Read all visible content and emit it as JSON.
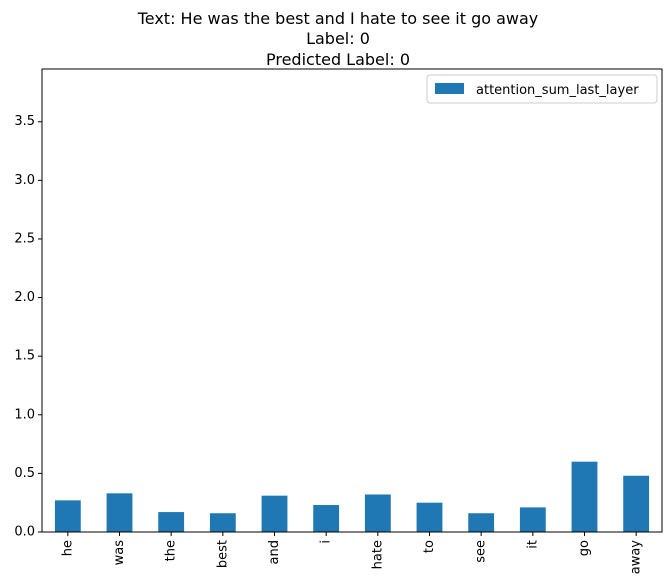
{
  "chart_data": {
    "type": "bar",
    "title_lines": [
      "Text: He was the best and I hate to see it go away",
      "Label: 0",
      "Predicted Label: 0"
    ],
    "categories": [
      "he",
      "was",
      "the",
      "best",
      "and",
      "i",
      "hate",
      "to",
      "see",
      "it",
      "go",
      "away"
    ],
    "series": [
      {
        "name": "attention_sum_last_layer",
        "color": "#1f77b4",
        "values": [
          0.27,
          0.33,
          0.17,
          0.16,
          0.31,
          0.23,
          0.32,
          0.25,
          0.16,
          0.21,
          0.6,
          0.48
        ]
      }
    ],
    "yticks": [
      "0.0",
      "0.5",
      "1.0",
      "1.5",
      "2.0",
      "2.5",
      "3.0",
      "3.5"
    ],
    "ylim": [
      0,
      3.95
    ],
    "xlabel": "",
    "ylabel": "",
    "grid": false,
    "legend_position": "top-right"
  }
}
